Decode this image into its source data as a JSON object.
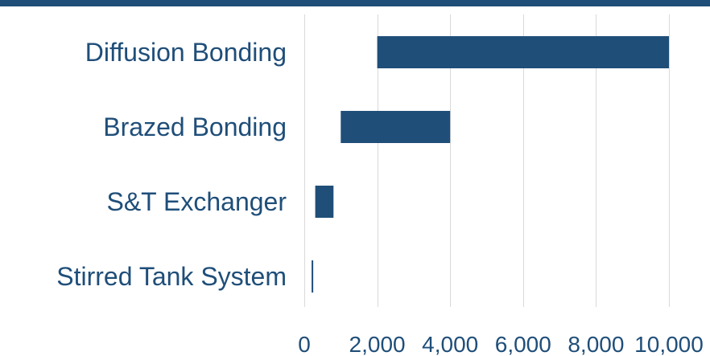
{
  "colors": {
    "bar": "#1f4e79",
    "text": "#1f4e79",
    "grid": "#d9d9d9",
    "band": "#1f4e79"
  },
  "chart_data": {
    "type": "bar",
    "orientation": "horizontal",
    "style": "floating-range",
    "categories": [
      "Diffusion Bonding",
      "Brazed Bonding",
      "S&T Exchanger",
      "Stirred Tank System"
    ],
    "series": [
      {
        "ranges": [
          [
            2000,
            10000
          ],
          [
            1000,
            4000
          ],
          [
            300,
            800
          ],
          [
            200,
            230
          ]
        ]
      }
    ],
    "title": "",
    "xlabel": "",
    "ylabel": "",
    "xlim": [
      0,
      10000
    ],
    "xticks": [
      0,
      2000,
      4000,
      6000,
      8000,
      10000
    ],
    "xtick_labels": [
      "0",
      "2,000",
      "4,000",
      "6,000",
      "8,000",
      "10,000"
    ],
    "grid": "vertical",
    "legend": "none"
  }
}
